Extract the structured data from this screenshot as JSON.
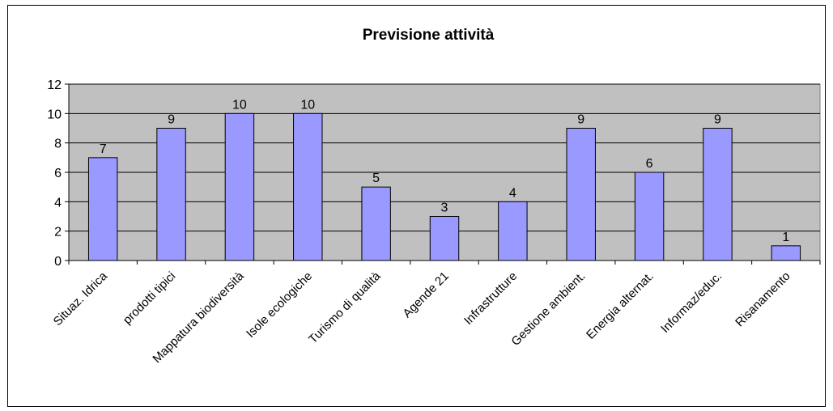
{
  "chart_data": {
    "type": "bar",
    "title": "Previsione attività",
    "xlabel": "",
    "ylabel": "",
    "categories": [
      "Situaz. Idrica",
      "prodotti tipici",
      "Mappatura biodiversità",
      "Isole ecologiche",
      "Turismo di qualità",
      "Agende 21",
      "Infrastrutture",
      "Gestione ambient.",
      "Energia alternat.",
      "Informaz/educ.",
      "Risanamento"
    ],
    "values": [
      7,
      9,
      10,
      10,
      5,
      3,
      4,
      9,
      6,
      9,
      1
    ],
    "ylim": [
      0,
      12
    ],
    "yticks": [
      0,
      2,
      4,
      6,
      8,
      10,
      12
    ],
    "grid": true,
    "legend": "none",
    "data_labels": true,
    "colors": {
      "bar_fill": "#9999ff",
      "bar_stroke": "#000000",
      "plot_background": "#c0c0c0",
      "grid": "#000000"
    }
  }
}
